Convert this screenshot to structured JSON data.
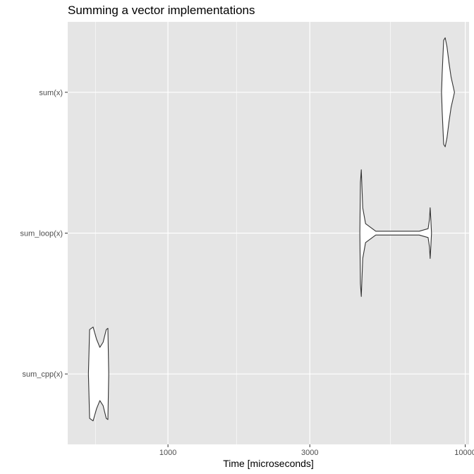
{
  "chart_data": {
    "type": "violin",
    "title": "Summing a vector implementations",
    "xlabel": "Time [microseconds]",
    "ylabel": "",
    "x_scale": "log10",
    "xlim": [
      460,
      10300
    ],
    "x_ticks": [
      1000,
      3000,
      10000
    ],
    "x_tick_labels": [
      "1000",
      "3000",
      "10000"
    ],
    "x_minor_ticks": [
      570,
      1700,
      5600
    ],
    "categories": [
      "sum(x)",
      "sum_loop(x)",
      "sum_cpp(x)"
    ],
    "grid": true,
    "legend": "none",
    "colors": {
      "panel": "#e5e5e5",
      "grid": "#ffffff",
      "outline": "#333333",
      "text": "#4d4d4d"
    },
    "series": [
      {
        "category": "sum(x)",
        "density": [
          [
            8320,
            0
          ],
          [
            8340,
            0.12
          ],
          [
            8360,
            0.28
          ],
          [
            8400,
            0.5
          ],
          [
            8460,
            0.82
          ],
          [
            8560,
            0.86
          ],
          [
            8680,
            0.72
          ],
          [
            8820,
            0.46
          ],
          [
            8960,
            0.24
          ],
          [
            9100,
            0.1
          ],
          [
            9200,
            0
          ]
        ]
      },
      {
        "category": "sum_loop(x)",
        "density": [
          [
            4420,
            0
          ],
          [
            4440,
            0.8
          ],
          [
            4470,
            1.0
          ],
          [
            4520,
            0.4
          ],
          [
            4620,
            0.15
          ],
          [
            5000,
            0.03
          ],
          [
            6000,
            0.03
          ],
          [
            7000,
            0.03
          ],
          [
            7500,
            0.07
          ],
          [
            7580,
            0.22
          ],
          [
            7620,
            0.4
          ],
          [
            7660,
            0.22
          ],
          [
            7700,
            0
          ]
        ]
      },
      {
        "category": "sum_cpp(x)",
        "density": [
          [
            540,
            0
          ],
          [
            545,
            0.7
          ],
          [
            560,
            0.74
          ],
          [
            575,
            0.55
          ],
          [
            590,
            0.42
          ],
          [
            605,
            0.5
          ],
          [
            620,
            0.7
          ],
          [
            628,
            0.72
          ],
          [
            632,
            0
          ]
        ]
      }
    ]
  }
}
